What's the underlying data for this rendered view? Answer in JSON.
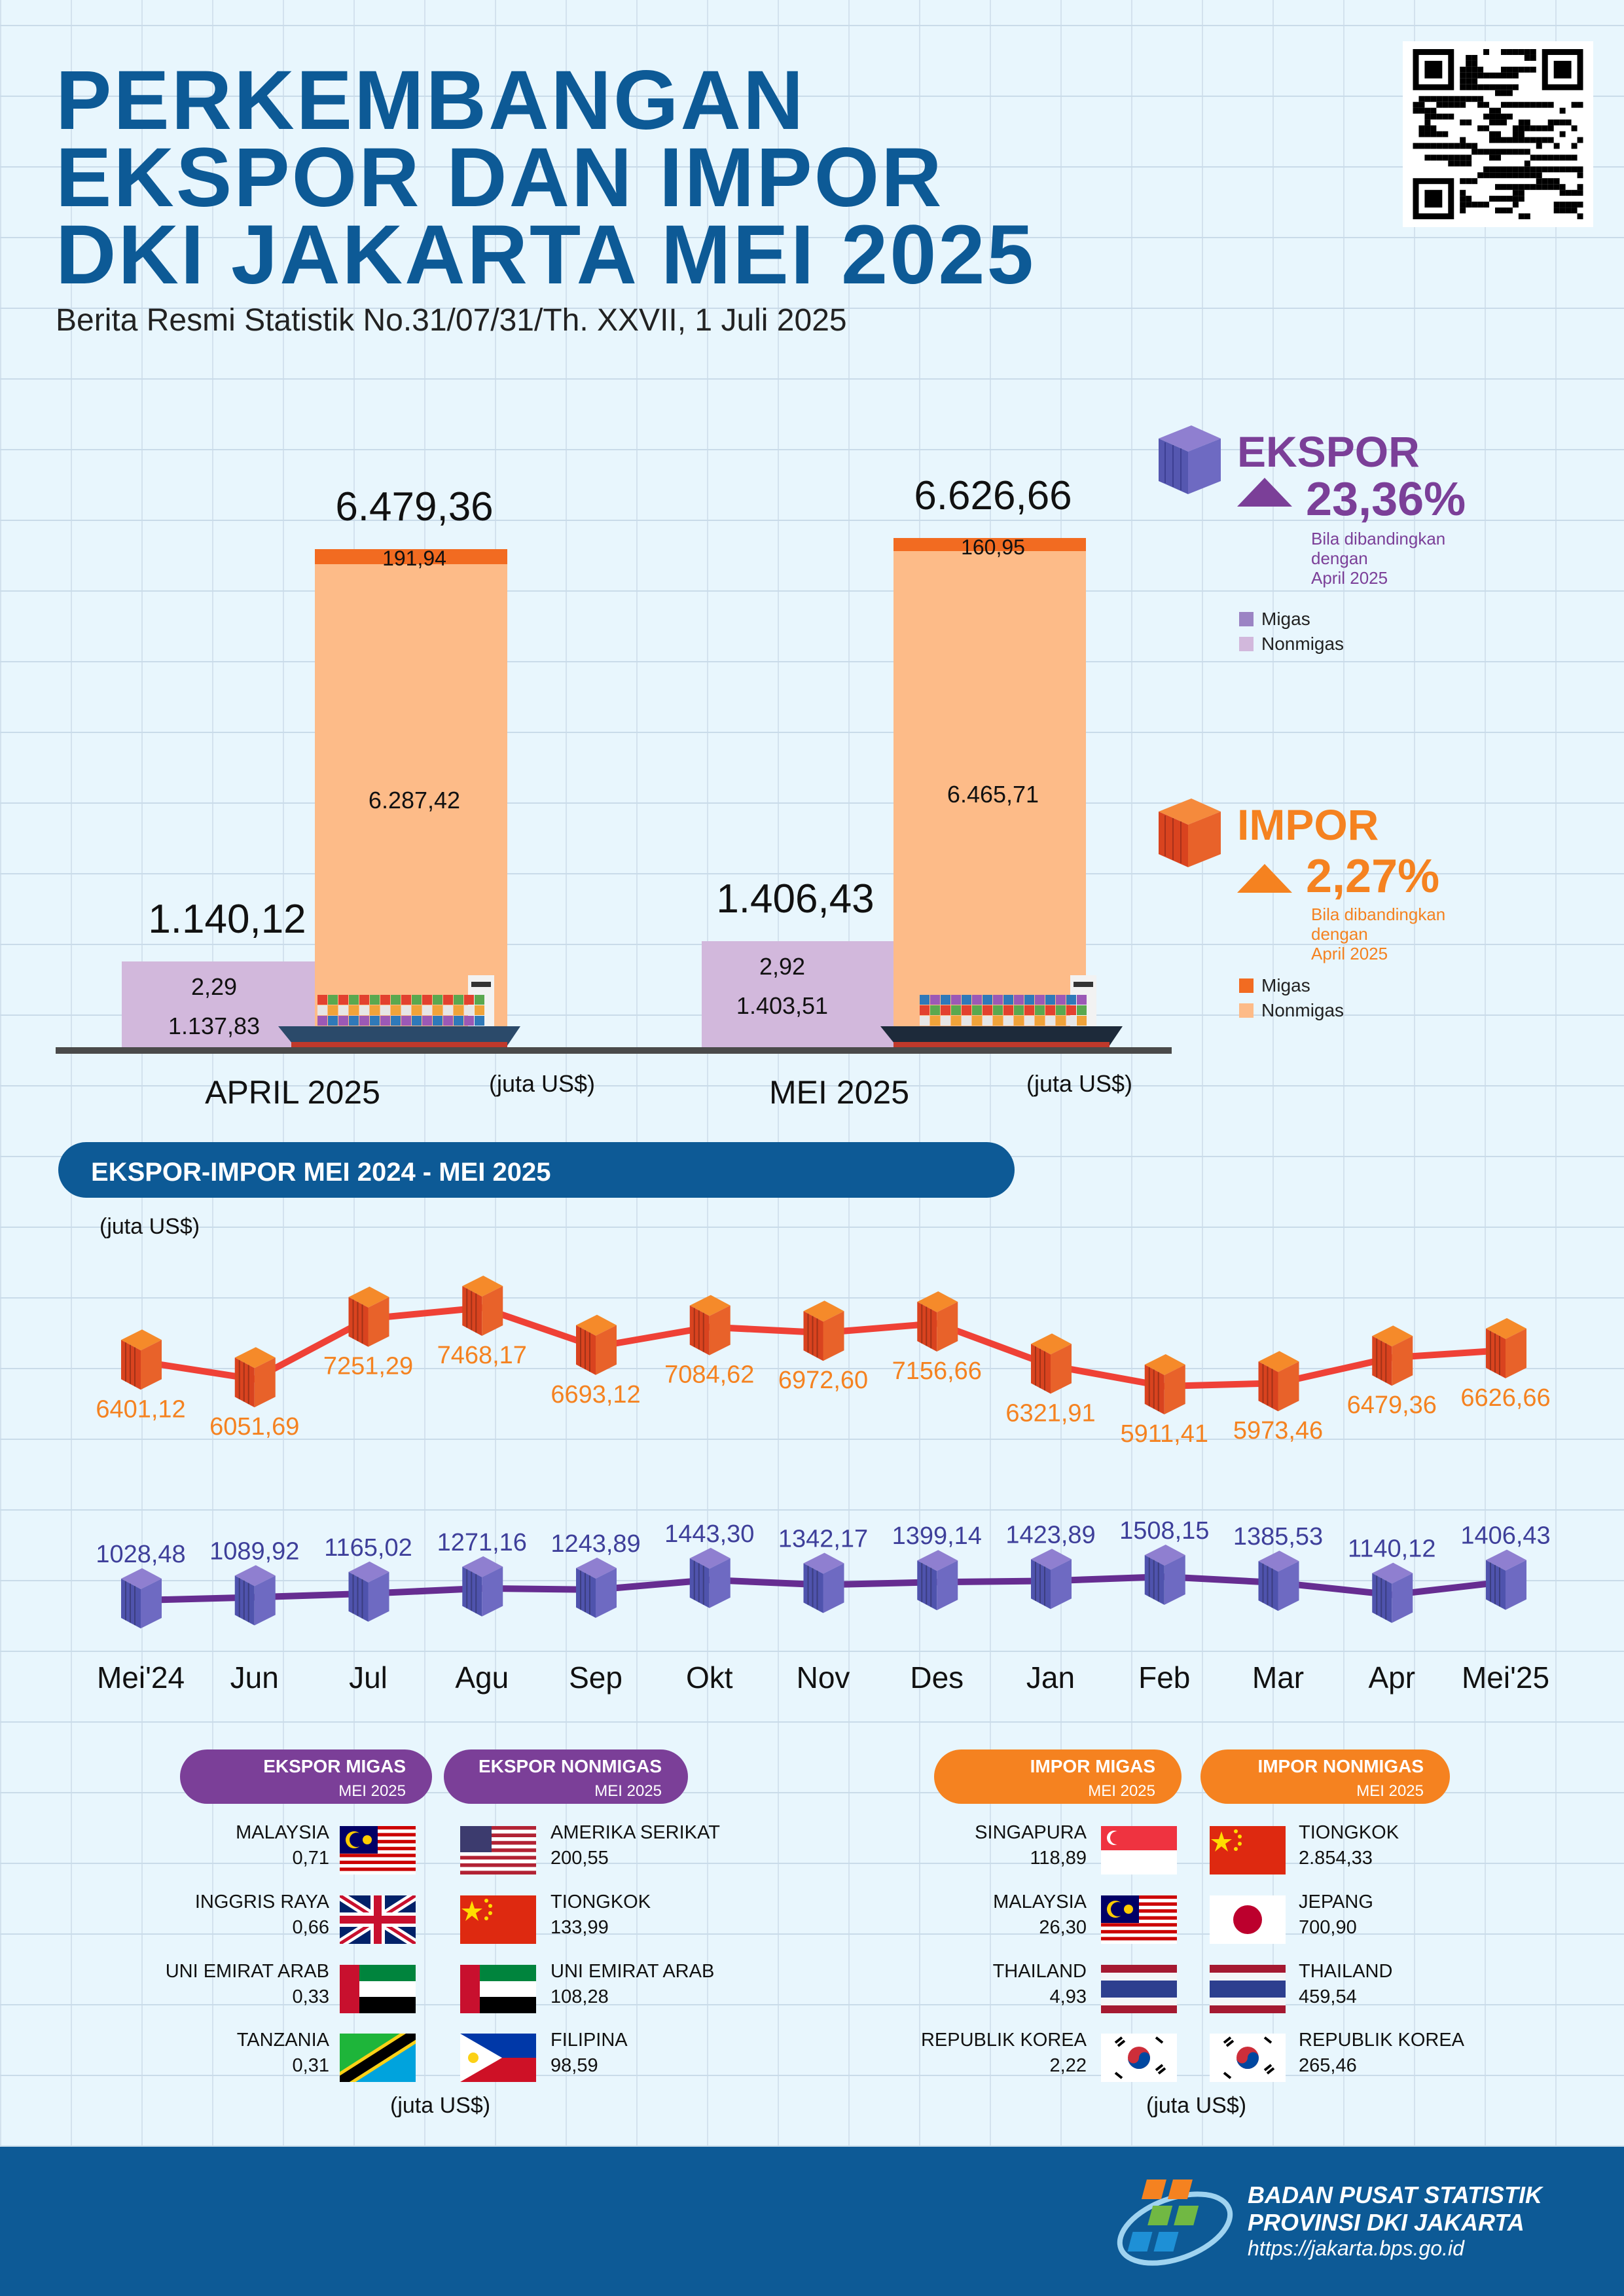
{
  "header": {
    "title_lines": [
      "PERKEMBANGAN",
      "EKSPOR DAN IMPOR",
      "DKI JAKARTA MEI 2025"
    ],
    "subtitle": "Berita Resmi Statistik No.31/07/31/Th. XXVII, 1 Juli 2025"
  },
  "colors": {
    "title": "#0d5a96",
    "ekspor": "#7b3f98",
    "impor": "#f58220",
    "ekspor_migas": "#9b84c4",
    "ekspor_nonmigas": "#d2b8dc",
    "impor_migas": "#f26b21",
    "impor_nonmigas": "#fdbb88"
  },
  "summary": {
    "unit": "(juta US$)",
    "periods": [
      {
        "label": "APRIL 2025",
        "ekspor_total": "1.140,12",
        "ekspor_migas": "2,29",
        "ekspor_nonmigas": "1.137,83",
        "impor_total": "6.479,36",
        "impor_migas": "191,94",
        "impor_nonmigas": "6.287,42",
        "ekspor_value": 1140.12,
        "impor_value": 6479.36,
        "impor_migas_value": 191.94
      },
      {
        "label": "MEI 2025",
        "ekspor_total": "1.406,43",
        "ekspor_migas": "2,92",
        "ekspor_nonmigas": "1.403,51",
        "impor_total": "6.626,66",
        "impor_migas": "160,95",
        "impor_nonmigas": "6.465,71",
        "ekspor_value": 1406.43,
        "impor_value": 6626.66,
        "impor_migas_value": 160.95
      }
    ]
  },
  "legend": {
    "ekspor": {
      "title": "EKSPOR",
      "change": "23,36%",
      "direction": "up",
      "note_lines": [
        "Bila dibandingkan",
        "dengan",
        "April 2025"
      ],
      "migas": "Migas",
      "nonmigas": "Nonmigas"
    },
    "impor": {
      "title": "IMPOR",
      "change": "2,27%",
      "direction": "up",
      "note_lines": [
        "Bila dibandingkan",
        "dengan",
        "April 2025"
      ],
      "migas": "Migas",
      "nonmigas": "Nonmigas"
    }
  },
  "trend": {
    "title": "EKSPOR-IMPOR MEI 2024 - MEI 2025",
    "unit": "(juta US$)"
  },
  "chart_data": {
    "type": "line",
    "categories": [
      "Mei'24",
      "Jun",
      "Jul",
      "Agu",
      "Sep",
      "Okt",
      "Nov",
      "Des",
      "Jan",
      "Feb",
      "Mar",
      "Apr",
      "Mei'25"
    ],
    "series": [
      {
        "key": "impor",
        "values": [
          6401.12,
          6051.69,
          7251.29,
          7468.17,
          6693.12,
          7084.62,
          6972.6,
          7156.66,
          6321.91,
          5911.41,
          5973.46,
          6479.36,
          6626.66
        ],
        "labels": [
          "6401,12",
          "6051,69",
          "7251,29",
          "7468,17",
          "6693,12",
          "7084,62",
          "6972,60",
          "7156,66",
          "6321,91",
          "5911,41",
          "5973,46",
          "6479,36",
          "6626,66"
        ],
        "color": "#ef4136"
      },
      {
        "key": "ekspor",
        "values": [
          1028.48,
          1089.92,
          1165.02,
          1271.16,
          1243.89,
          1443.3,
          1342.17,
          1399.14,
          1423.89,
          1508.15,
          1385.53,
          1140.12,
          1406.43
        ],
        "labels": [
          "1028,48",
          "1089,92",
          "1165,02",
          "1271,16",
          "1243,89",
          "1443,30",
          "1342,17",
          "1399,14",
          "1423,89",
          "1508,15",
          "1385,53",
          "1140,12",
          "1406,43"
        ],
        "color": "#662d91"
      }
    ],
    "grid": true
  },
  "partners": {
    "unit": "(juta US$)",
    "ekspor_migas": {
      "title": "EKSPOR MIGAS",
      "period": "MEI 2025",
      "items": [
        {
          "country": "MALAYSIA",
          "value": "0,71",
          "flag": "my"
        },
        {
          "country": "INGGRIS RAYA",
          "value": "0,66",
          "flag": "gb"
        },
        {
          "country": "UNI EMIRAT ARAB",
          "value": "0,33",
          "flag": "ae"
        },
        {
          "country": "TANZANIA",
          "value": "0,31",
          "flag": "tz"
        }
      ]
    },
    "ekspor_nonmigas": {
      "title": "EKSPOR NONMIGAS",
      "period": "MEI 2025",
      "items": [
        {
          "country": "AMERIKA SERIKAT",
          "value": "200,55",
          "flag": "us"
        },
        {
          "country": "TIONGKOK",
          "value": "133,99",
          "flag": "cn"
        },
        {
          "country": "UNI EMIRAT ARAB",
          "value": "108,28",
          "flag": "ae"
        },
        {
          "country": "FILIPINA",
          "value": "98,59",
          "flag": "ph"
        }
      ]
    },
    "impor_migas": {
      "title": "IMPOR MIGAS",
      "period": "MEI 2025",
      "items": [
        {
          "country": "SINGAPURA",
          "value": "118,89",
          "flag": "sg"
        },
        {
          "country": "MALAYSIA",
          "value": "26,30",
          "flag": "my"
        },
        {
          "country": "THAILAND",
          "value": "4,93",
          "flag": "th"
        },
        {
          "country": "REPUBLIK KOREA",
          "value": "2,22",
          "flag": "kr"
        }
      ]
    },
    "impor_nonmigas": {
      "title": "IMPOR NONMIGAS",
      "period": "MEI 2025",
      "items": [
        {
          "country": "TIONGKOK",
          "value": "2.854,33",
          "flag": "cn"
        },
        {
          "country": "JEPANG",
          "value": "700,90",
          "flag": "jp"
        },
        {
          "country": "THAILAND",
          "value": "459,54",
          "flag": "th"
        },
        {
          "country": "REPUBLIK KOREA",
          "value": "265,46",
          "flag": "kr"
        }
      ]
    }
  },
  "footer": {
    "org_line1": "BADAN PUSAT STATISTIK",
    "org_line2": "PROVINSI DKI JAKARTA",
    "url": "https://jakarta.bps.go.id"
  }
}
